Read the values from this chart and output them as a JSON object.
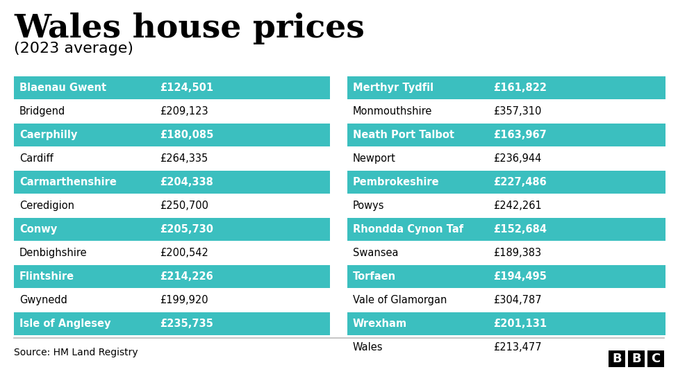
{
  "title_main": "Wales house prices",
  "title_sub": "(2023 average)",
  "source": "Source: HM Land Registry",
  "background_color": "#ffffff",
  "teal_color": "#3bbfbf",
  "text_color_white": "#ffffff",
  "text_color_black": "#000000",
  "left_data": [
    {
      "name": "Blaenau Gwent",
      "price": "£124,501",
      "highlight": true
    },
    {
      "name": "Bridgend",
      "price": "£209,123",
      "highlight": false
    },
    {
      "name": "Caerphilly",
      "price": "£180,085",
      "highlight": true
    },
    {
      "name": "Cardiff",
      "price": "£264,335",
      "highlight": false
    },
    {
      "name": "Carmarthenshire",
      "price": "£204,338",
      "highlight": true
    },
    {
      "name": "Ceredigion",
      "price": "£250,700",
      "highlight": false
    },
    {
      "name": "Conwy",
      "price": "£205,730",
      "highlight": true
    },
    {
      "name": "Denbighshire",
      "price": "£200,542",
      "highlight": false
    },
    {
      "name": "Flintshire",
      "price": "£214,226",
      "highlight": true
    },
    {
      "name": "Gwynedd",
      "price": "£199,920",
      "highlight": false
    },
    {
      "name": "Isle of Anglesey",
      "price": "£235,735",
      "highlight": true
    }
  ],
  "right_data": [
    {
      "name": "Merthyr Tydfil",
      "price": "£161,822",
      "highlight": true
    },
    {
      "name": "Monmouthshire",
      "price": "£357,310",
      "highlight": false
    },
    {
      "name": "Neath Port Talbot",
      "price": "£163,967",
      "highlight": true
    },
    {
      "name": "Newport",
      "price": "£236,944",
      "highlight": false
    },
    {
      "name": "Pembrokeshire",
      "price": "£227,486",
      "highlight": true
    },
    {
      "name": "Powys",
      "price": "£242,261",
      "highlight": false
    },
    {
      "name": "Rhondda Cynon Taf",
      "price": "£152,684",
      "highlight": true
    },
    {
      "name": "Swansea",
      "price": "£189,383",
      "highlight": false
    },
    {
      "name": "Torfaen",
      "price": "£194,495",
      "highlight": true
    },
    {
      "name": "Vale of Glamorgan",
      "price": "£304,787",
      "highlight": false
    },
    {
      "name": "Wrexham",
      "price": "£201,131",
      "highlight": true
    },
    {
      "name": "Wales",
      "price": "£213,477",
      "highlight": false
    }
  ],
  "fig_width": 9.76,
  "fig_height": 5.49,
  "dpi": 100,
  "title_main_fontsize": 34,
  "title_sub_fontsize": 16,
  "row_fontsize": 10.5,
  "source_fontsize": 10
}
